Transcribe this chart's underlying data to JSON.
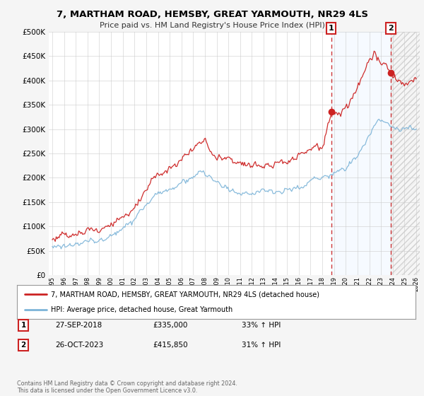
{
  "title": "7, MARTHAM ROAD, HEMSBY, GREAT YARMOUTH, NR29 4LS",
  "subtitle": "Price paid vs. HM Land Registry's House Price Index (HPI)",
  "legend_line1": "7, MARTHAM ROAD, HEMSBY, GREAT YARMOUTH, NR29 4LS (detached house)",
  "legend_line2": "HPI: Average price, detached house, Great Yarmouth",
  "annotation1_label": "1",
  "annotation1_date": "27-SEP-2018",
  "annotation1_price": "£335,000",
  "annotation1_hpi": "33% ↑ HPI",
  "annotation2_label": "2",
  "annotation2_date": "26-OCT-2023",
  "annotation2_price": "£415,850",
  "annotation2_hpi": "31% ↑ HPI",
  "footer": "Contains HM Land Registry data © Crown copyright and database right 2024.\nThis data is licensed under the Open Government Licence v3.0.",
  "hpi_color": "#7cb4d8",
  "price_color": "#cc2222",
  "annotation_color": "#cc2222",
  "shade_color": "#ddeeff",
  "bg_color": "#f5f5f5",
  "plot_bg": "#ffffff",
  "grid_color": "#cccccc",
  "ylim": [
    0,
    500000
  ],
  "yticks": [
    0,
    50000,
    100000,
    150000,
    200000,
    250000,
    300000,
    350000,
    400000,
    450000,
    500000
  ],
  "sale1_year": 2018.75,
  "sale1_price": 335000,
  "sale2_year": 2023.83,
  "sale2_price": 415850,
  "xmin": 1995.0,
  "xmax": 2026.0
}
